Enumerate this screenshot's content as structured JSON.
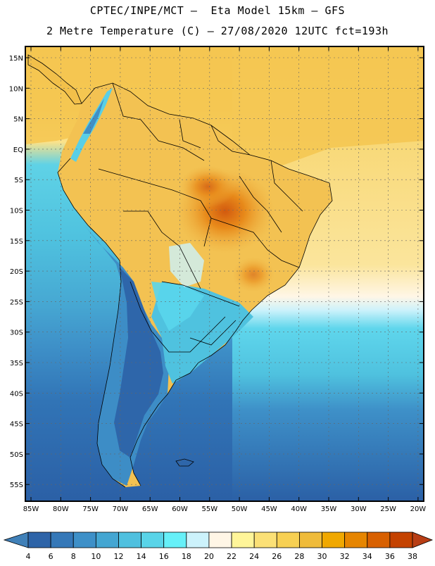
{
  "header": {
    "line1": "CPTEC/INPE/MCT –  Eta Model 15km – GFS",
    "line2": "2 Metre Temperature (C) – 27/08/2020 12UTC fct=193h"
  },
  "map": {
    "lat_labels": [
      "15N",
      "10N",
      "5N",
      "EQ",
      "5S",
      "10S",
      "15S",
      "20S",
      "25S",
      "30S",
      "35S",
      "40S",
      "45S",
      "50S",
      "55S"
    ],
    "lon_labels": [
      "85W",
      "80W",
      "75W",
      "70W",
      "65W",
      "60W",
      "55W",
      "50W",
      "45W",
      "40W",
      "35W",
      "30W",
      "25W",
      "20W"
    ]
  },
  "colorbar": {
    "ticks": [
      "4",
      "6",
      "8",
      "10",
      "12",
      "14",
      "16",
      "18",
      "20",
      "22",
      "24",
      "26",
      "28",
      "30",
      "32",
      "34",
      "36",
      "38"
    ],
    "colors": [
      "#2e64a8",
      "#3578b8",
      "#3e90c8",
      "#44a6d2",
      "#4fc0df",
      "#59d4e8",
      "#66f0f8",
      "#ccf2fb",
      "#fff6e6",
      "#fff599",
      "#fbe076",
      "#f7d053",
      "#efbb3a",
      "#f0a800",
      "#e68500",
      "#d86000",
      "#c44200"
    ],
    "low_color": "#4080b8",
    "high_color": "#b83e15"
  },
  "palette": {
    "land_warm": "#f2c04a",
    "land_hot": "#e07a12",
    "ocean_warm": "#fbe5a0",
    "ocean_cool": "#4dbfd8",
    "ocean_cold": "#2c60a6"
  }
}
